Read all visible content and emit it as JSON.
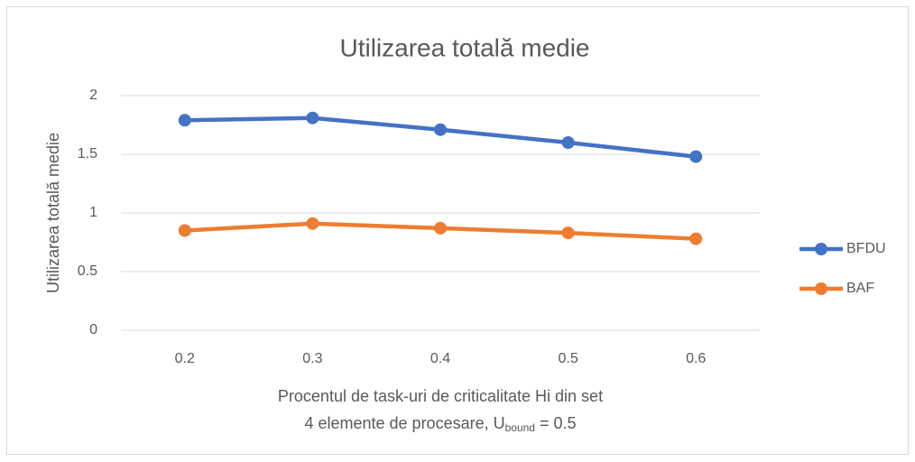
{
  "chart_data": {
    "type": "line",
    "title": "Utilizarea totală medie",
    "ylabel": "Utilizarea totală medie",
    "xlabel": [
      "Procentul de task-uri de criticalitate Hi din set",
      [
        "4 elemente de procesare, U",
        "bound",
        " = 0.5"
      ]
    ],
    "categories": [
      "0.2",
      "0.3",
      "0.4",
      "0.5",
      "0.6"
    ],
    "series": [
      {
        "name": "BFDU",
        "color": "#4472c4",
        "values": [
          1.79,
          1.81,
          1.71,
          1.6,
          1.48
        ]
      },
      {
        "name": "BAF",
        "color": "#ed7d31",
        "values": [
          0.85,
          0.91,
          0.87,
          0.83,
          0.78
        ]
      }
    ],
    "ylim": [
      0,
      2
    ],
    "yticks": [
      0,
      0.5,
      1,
      1.5,
      2
    ],
    "grid": true,
    "legend": "right"
  }
}
